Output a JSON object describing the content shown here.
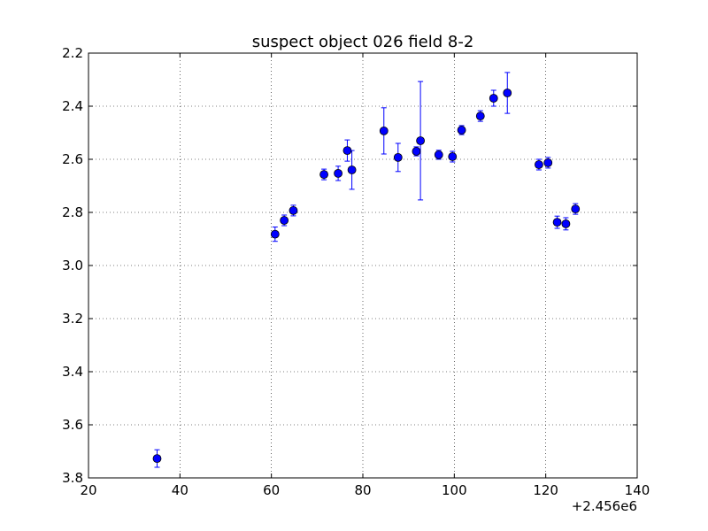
{
  "chart_data": {
    "type": "scatter",
    "title": "suspect object 026 field 8-2",
    "xlabel": "",
    "ylabel": "",
    "x_offset_label": "+2.456e6",
    "xlim": [
      20,
      140
    ],
    "ylim": [
      3.8,
      2.2
    ],
    "y_inverted": true,
    "grid": true,
    "marker_color": "#0000ff",
    "x_ticks": [
      20,
      40,
      60,
      80,
      100,
      120,
      140
    ],
    "x_tick_labels": [
      "20",
      "40",
      "60",
      "80",
      "100",
      "120",
      "140"
    ],
    "y_ticks": [
      2.2,
      2.4,
      2.6,
      2.8,
      3.0,
      3.2,
      3.4,
      3.6,
      3.8
    ],
    "y_tick_labels": [
      "2.2",
      "2.4",
      "2.6",
      "2.8",
      "3.0",
      "3.2",
      "3.4",
      "3.6",
      "3.8"
    ],
    "points": [
      {
        "x": 35.0,
        "y": 3.727,
        "err": 0.033
      },
      {
        "x": 60.8,
        "y": 2.882,
        "err": 0.027
      },
      {
        "x": 62.8,
        "y": 2.83,
        "err": 0.02
      },
      {
        "x": 64.8,
        "y": 2.793,
        "err": 0.02
      },
      {
        "x": 71.5,
        "y": 2.657,
        "err": 0.02
      },
      {
        "x": 74.6,
        "y": 2.653,
        "err": 0.027
      },
      {
        "x": 76.6,
        "y": 2.567,
        "err": 0.04
      },
      {
        "x": 77.6,
        "y": 2.64,
        "err": 0.073
      },
      {
        "x": 84.6,
        "y": 2.493,
        "err": 0.087
      },
      {
        "x": 87.7,
        "y": 2.593,
        "err": 0.053
      },
      {
        "x": 91.7,
        "y": 2.57,
        "err": 0.017
      },
      {
        "x": 92.6,
        "y": 2.53,
        "err": 0.223
      },
      {
        "x": 96.6,
        "y": 2.583,
        "err": 0.017
      },
      {
        "x": 99.6,
        "y": 2.59,
        "err": 0.02
      },
      {
        "x": 101.6,
        "y": 2.49,
        "err": 0.017
      },
      {
        "x": 105.7,
        "y": 2.437,
        "err": 0.02
      },
      {
        "x": 108.6,
        "y": 2.37,
        "err": 0.03
      },
      {
        "x": 111.6,
        "y": 2.35,
        "err": 0.077
      },
      {
        "x": 118.5,
        "y": 2.62,
        "err": 0.02
      },
      {
        "x": 120.5,
        "y": 2.613,
        "err": 0.02
      },
      {
        "x": 122.5,
        "y": 2.837,
        "err": 0.023
      },
      {
        "x": 124.4,
        "y": 2.843,
        "err": 0.023
      },
      {
        "x": 126.5,
        "y": 2.787,
        "err": 0.02
      }
    ]
  }
}
